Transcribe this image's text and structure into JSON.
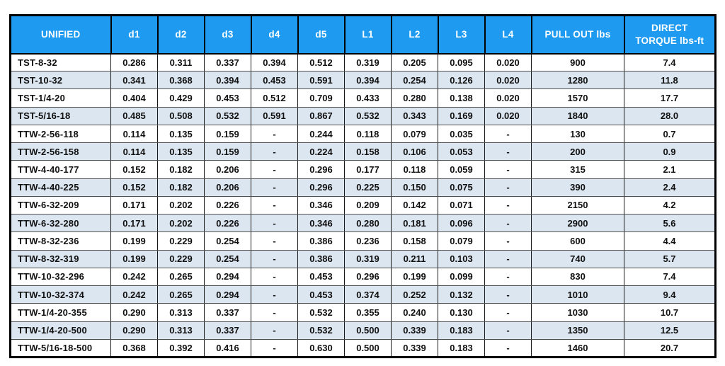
{
  "colors": {
    "header_bg": "#1e9bf0",
    "header_text": "#ffffff",
    "stripe_bg": "#dce6f1",
    "outer_border": "#000000"
  },
  "table": {
    "columns": [
      "UNIFIED",
      "d1",
      "d2",
      "d3",
      "d4",
      "d5",
      "L1",
      "L2",
      "L3",
      "L4",
      "PULL OUT lbs",
      "DIRECT\nTORQUE lbs-ft"
    ],
    "rows": [
      {
        "name": "TST-8-32",
        "values": [
          "0.286",
          "0.311",
          "0.337",
          "0.394",
          "0.512",
          "0.319",
          "0.205",
          "0.095",
          "0.020",
          "900",
          "7.4"
        ]
      },
      {
        "name": "TST-10-32",
        "values": [
          "0.341",
          "0.368",
          "0.394",
          "0.453",
          "0.591",
          "0.394",
          "0.254",
          "0.126",
          "0.020",
          "1280",
          "11.8"
        ]
      },
      {
        "name": "TST-1/4-20",
        "values": [
          "0.404",
          "0.429",
          "0.453",
          "0.512",
          "0.709",
          "0.433",
          "0.280",
          "0.138",
          "0.020",
          "1570",
          "17.7"
        ]
      },
      {
        "name": "TST-5/16-18",
        "values": [
          "0.485",
          "0.508",
          "0.532",
          "0.591",
          "0.867",
          "0.532",
          "0.343",
          "0.169",
          "0.020",
          "1840",
          "28.0"
        ]
      },
      {
        "name": "TTW-2-56-118",
        "values": [
          "0.114",
          "0.135",
          "0.159",
          "-",
          "0.244",
          "0.118",
          "0.079",
          "0.035",
          "-",
          "130",
          "0.7"
        ]
      },
      {
        "name": "TTW-2-56-158",
        "values": [
          "0.114",
          "0.135",
          "0.159",
          "-",
          "0.224",
          "0.158",
          "0.106",
          "0.053",
          "-",
          "200",
          "0.9"
        ]
      },
      {
        "name": "TTW-4-40-177",
        "values": [
          "0.152",
          "0.182",
          "0.206",
          "-",
          "0.296",
          "0.177",
          "0.118",
          "0.059",
          "-",
          "315",
          "2.1"
        ]
      },
      {
        "name": "TTW-4-40-225",
        "values": [
          "0.152",
          "0.182",
          "0.206",
          "-",
          "0.296",
          "0.225",
          "0.150",
          "0.075",
          "-",
          "390",
          "2.4"
        ]
      },
      {
        "name": "TTW-6-32-209",
        "values": [
          "0.171",
          "0.202",
          "0.226",
          "-",
          "0.346",
          "0.209",
          "0.142",
          "0.071",
          "-",
          "2150",
          "4.2"
        ]
      },
      {
        "name": "TTW-6-32-280",
        "values": [
          "0.171",
          "0.202",
          "0.226",
          "-",
          "0.346",
          "0.280",
          "0.181",
          "0.096",
          "-",
          "2900",
          "5.6"
        ]
      },
      {
        "name": "TTW-8-32-236",
        "values": [
          "0.199",
          "0.229",
          "0.254",
          "-",
          "0.386",
          "0.236",
          "0.158",
          "0.079",
          "-",
          "600",
          "4.4"
        ]
      },
      {
        "name": "TTW-8-32-319",
        "values": [
          "0.199",
          "0.229",
          "0.254",
          "-",
          "0.386",
          "0.319",
          "0.211",
          "0.103",
          "-",
          "740",
          "5.7"
        ]
      },
      {
        "name": "TTW-10-32-296",
        "values": [
          "0.242",
          "0.265",
          "0.294",
          "-",
          "0.453",
          "0.296",
          "0.199",
          "0.099",
          "-",
          "830",
          "7.4"
        ]
      },
      {
        "name": "TTW-10-32-374",
        "values": [
          "0.242",
          "0.265",
          "0.294",
          "-",
          "0.453",
          "0.374",
          "0.252",
          "0.132",
          "-",
          "1010",
          "9.4"
        ]
      },
      {
        "name": "TTW-1/4-20-355",
        "values": [
          "0.290",
          "0.313",
          "0.337",
          "-",
          "0.532",
          "0.355",
          "0.240",
          "0.130",
          "-",
          "1030",
          "10.7"
        ]
      },
      {
        "name": "TTW-1/4-20-500",
        "values": [
          "0.290",
          "0.313",
          "0.337",
          "-",
          "0.532",
          "0.500",
          "0.339",
          "0.183",
          "-",
          "1350",
          "12.5"
        ]
      },
      {
        "name": "TTW-5/16-18-500",
        "values": [
          "0.368",
          "0.392",
          "0.416",
          "-",
          "0.630",
          "0.500",
          "0.339",
          "0.183",
          "-",
          "1460",
          "20.7"
        ]
      }
    ]
  }
}
